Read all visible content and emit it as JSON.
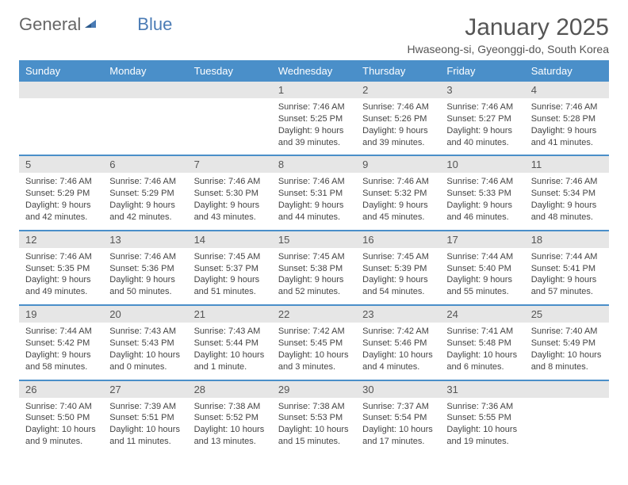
{
  "logo": {
    "text1": "General",
    "text2": "Blue"
  },
  "header": {
    "month_title": "January 2025",
    "location": "Hwaseong-si, Gyeonggi-do, South Korea"
  },
  "day_headers": [
    "Sunday",
    "Monday",
    "Tuesday",
    "Wednesday",
    "Thursday",
    "Friday",
    "Saturday"
  ],
  "colors": {
    "header_bg": "#4a8fc9",
    "header_text": "#ffffff",
    "daynum_bg": "#e6e6e6",
    "row_border": "#4a8fc9",
    "logo_gray": "#666666",
    "logo_blue": "#4a7bb5"
  },
  "weeks": [
    {
      "days": [
        {
          "num": "",
          "sunrise": "",
          "sunset": "",
          "daylight": ""
        },
        {
          "num": "",
          "sunrise": "",
          "sunset": "",
          "daylight": ""
        },
        {
          "num": "",
          "sunrise": "",
          "sunset": "",
          "daylight": ""
        },
        {
          "num": "1",
          "sunrise": "Sunrise: 7:46 AM",
          "sunset": "Sunset: 5:25 PM",
          "daylight": "Daylight: 9 hours and 39 minutes."
        },
        {
          "num": "2",
          "sunrise": "Sunrise: 7:46 AM",
          "sunset": "Sunset: 5:26 PM",
          "daylight": "Daylight: 9 hours and 39 minutes."
        },
        {
          "num": "3",
          "sunrise": "Sunrise: 7:46 AM",
          "sunset": "Sunset: 5:27 PM",
          "daylight": "Daylight: 9 hours and 40 minutes."
        },
        {
          "num": "4",
          "sunrise": "Sunrise: 7:46 AM",
          "sunset": "Sunset: 5:28 PM",
          "daylight": "Daylight: 9 hours and 41 minutes."
        }
      ]
    },
    {
      "days": [
        {
          "num": "5",
          "sunrise": "Sunrise: 7:46 AM",
          "sunset": "Sunset: 5:29 PM",
          "daylight": "Daylight: 9 hours and 42 minutes."
        },
        {
          "num": "6",
          "sunrise": "Sunrise: 7:46 AM",
          "sunset": "Sunset: 5:29 PM",
          "daylight": "Daylight: 9 hours and 42 minutes."
        },
        {
          "num": "7",
          "sunrise": "Sunrise: 7:46 AM",
          "sunset": "Sunset: 5:30 PM",
          "daylight": "Daylight: 9 hours and 43 minutes."
        },
        {
          "num": "8",
          "sunrise": "Sunrise: 7:46 AM",
          "sunset": "Sunset: 5:31 PM",
          "daylight": "Daylight: 9 hours and 44 minutes."
        },
        {
          "num": "9",
          "sunrise": "Sunrise: 7:46 AM",
          "sunset": "Sunset: 5:32 PM",
          "daylight": "Daylight: 9 hours and 45 minutes."
        },
        {
          "num": "10",
          "sunrise": "Sunrise: 7:46 AM",
          "sunset": "Sunset: 5:33 PM",
          "daylight": "Daylight: 9 hours and 46 minutes."
        },
        {
          "num": "11",
          "sunrise": "Sunrise: 7:46 AM",
          "sunset": "Sunset: 5:34 PM",
          "daylight": "Daylight: 9 hours and 48 minutes."
        }
      ]
    },
    {
      "days": [
        {
          "num": "12",
          "sunrise": "Sunrise: 7:46 AM",
          "sunset": "Sunset: 5:35 PM",
          "daylight": "Daylight: 9 hours and 49 minutes."
        },
        {
          "num": "13",
          "sunrise": "Sunrise: 7:46 AM",
          "sunset": "Sunset: 5:36 PM",
          "daylight": "Daylight: 9 hours and 50 minutes."
        },
        {
          "num": "14",
          "sunrise": "Sunrise: 7:45 AM",
          "sunset": "Sunset: 5:37 PM",
          "daylight": "Daylight: 9 hours and 51 minutes."
        },
        {
          "num": "15",
          "sunrise": "Sunrise: 7:45 AM",
          "sunset": "Sunset: 5:38 PM",
          "daylight": "Daylight: 9 hours and 52 minutes."
        },
        {
          "num": "16",
          "sunrise": "Sunrise: 7:45 AM",
          "sunset": "Sunset: 5:39 PM",
          "daylight": "Daylight: 9 hours and 54 minutes."
        },
        {
          "num": "17",
          "sunrise": "Sunrise: 7:44 AM",
          "sunset": "Sunset: 5:40 PM",
          "daylight": "Daylight: 9 hours and 55 minutes."
        },
        {
          "num": "18",
          "sunrise": "Sunrise: 7:44 AM",
          "sunset": "Sunset: 5:41 PM",
          "daylight": "Daylight: 9 hours and 57 minutes."
        }
      ]
    },
    {
      "days": [
        {
          "num": "19",
          "sunrise": "Sunrise: 7:44 AM",
          "sunset": "Sunset: 5:42 PM",
          "daylight": "Daylight: 9 hours and 58 minutes."
        },
        {
          "num": "20",
          "sunrise": "Sunrise: 7:43 AM",
          "sunset": "Sunset: 5:43 PM",
          "daylight": "Daylight: 10 hours and 0 minutes."
        },
        {
          "num": "21",
          "sunrise": "Sunrise: 7:43 AM",
          "sunset": "Sunset: 5:44 PM",
          "daylight": "Daylight: 10 hours and 1 minute."
        },
        {
          "num": "22",
          "sunrise": "Sunrise: 7:42 AM",
          "sunset": "Sunset: 5:45 PM",
          "daylight": "Daylight: 10 hours and 3 minutes."
        },
        {
          "num": "23",
          "sunrise": "Sunrise: 7:42 AM",
          "sunset": "Sunset: 5:46 PM",
          "daylight": "Daylight: 10 hours and 4 minutes."
        },
        {
          "num": "24",
          "sunrise": "Sunrise: 7:41 AM",
          "sunset": "Sunset: 5:48 PM",
          "daylight": "Daylight: 10 hours and 6 minutes."
        },
        {
          "num": "25",
          "sunrise": "Sunrise: 7:40 AM",
          "sunset": "Sunset: 5:49 PM",
          "daylight": "Daylight: 10 hours and 8 minutes."
        }
      ]
    },
    {
      "days": [
        {
          "num": "26",
          "sunrise": "Sunrise: 7:40 AM",
          "sunset": "Sunset: 5:50 PM",
          "daylight": "Daylight: 10 hours and 9 minutes."
        },
        {
          "num": "27",
          "sunrise": "Sunrise: 7:39 AM",
          "sunset": "Sunset: 5:51 PM",
          "daylight": "Daylight: 10 hours and 11 minutes."
        },
        {
          "num": "28",
          "sunrise": "Sunrise: 7:38 AM",
          "sunset": "Sunset: 5:52 PM",
          "daylight": "Daylight: 10 hours and 13 minutes."
        },
        {
          "num": "29",
          "sunrise": "Sunrise: 7:38 AM",
          "sunset": "Sunset: 5:53 PM",
          "daylight": "Daylight: 10 hours and 15 minutes."
        },
        {
          "num": "30",
          "sunrise": "Sunrise: 7:37 AM",
          "sunset": "Sunset: 5:54 PM",
          "daylight": "Daylight: 10 hours and 17 minutes."
        },
        {
          "num": "31",
          "sunrise": "Sunrise: 7:36 AM",
          "sunset": "Sunset: 5:55 PM",
          "daylight": "Daylight: 10 hours and 19 minutes."
        },
        {
          "num": "",
          "sunrise": "",
          "sunset": "",
          "daylight": ""
        }
      ]
    }
  ]
}
